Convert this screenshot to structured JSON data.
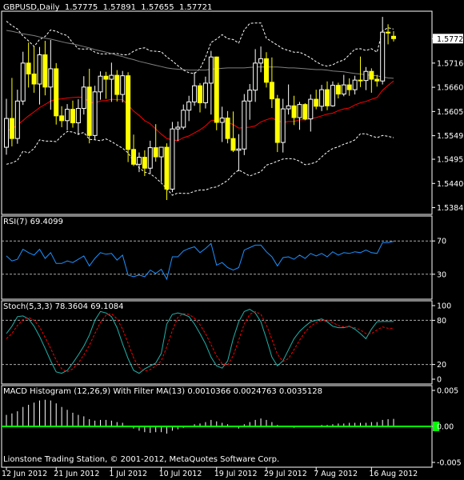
{
  "header": {
    "symbol": "GBPUSD,Daily",
    "ohlc": [
      "1.57775",
      "1.57891",
      "1.57655",
      "1.57721"
    ]
  },
  "colors": {
    "background": "#000000",
    "frame": "#ffffff",
    "bull": "#ffffff",
    "bear": "#ffff00",
    "band": "#ffffff",
    "slow_ma": "#808080",
    "fast_ma": "#ff0000",
    "rsi": "#1e90ff",
    "stoch_main": "#20b2aa",
    "stoch_signal": "#ff0000",
    "macd_hist": "#ffffff",
    "macd_signal": "#00ff00",
    "price_tag": "#ffffff"
  },
  "footer": "Lionstone Trading Station, © 2001-2012, MetaQuotes Software Corp.",
  "chart_data": [
    {
      "type": "candlestick",
      "title": "GBPUSD,Daily",
      "ylim": [
        1.5369,
        1.5835
      ],
      "y_ticks": [
        "1.57721",
        "1.57160",
        "1.56605",
        "1.56050",
        "1.55495",
        "1.54955",
        "1.54400",
        "1.53845"
      ],
      "current_price": "1.57721",
      "x_ticks": [
        "12 Jun 2012",
        "21 Jun 2012",
        "1 Jul 2012",
        "10 Jul 2012",
        "19 Jul 2012",
        "29 Jul 2012",
        "7 Aug 2012",
        "16 Aug 2012"
      ],
      "candles": [
        [
          1.5523,
          1.5634,
          1.5506,
          1.5589
        ],
        [
          1.5589,
          1.5682,
          1.5525,
          1.5543
        ],
        [
          1.5543,
          1.5655,
          1.5531,
          1.5629
        ],
        [
          1.5629,
          1.5742,
          1.562,
          1.5716
        ],
        [
          1.5716,
          1.5763,
          1.566,
          1.5691
        ],
        [
          1.5691,
          1.5754,
          1.5648,
          1.5668
        ],
        [
          1.5668,
          1.5753,
          1.5621,
          1.5735
        ],
        [
          1.5735,
          1.5767,
          1.5642,
          1.5661
        ],
        [
          1.5661,
          1.5769,
          1.5609,
          1.5703
        ],
        [
          1.5703,
          1.5716,
          1.5575,
          1.5595
        ],
        [
          1.5595,
          1.5617,
          1.5569,
          1.5584
        ],
        [
          1.5584,
          1.5622,
          1.5562,
          1.561
        ],
        [
          1.561,
          1.563,
          1.5568,
          1.5579
        ],
        [
          1.5579,
          1.5633,
          1.5551,
          1.5612
        ],
        [
          1.5612,
          1.5686,
          1.5598,
          1.5661
        ],
        [
          1.5661,
          1.5703,
          1.5532,
          1.555
        ],
        [
          1.555,
          1.5664,
          1.554,
          1.565
        ],
        [
          1.565,
          1.5697,
          1.5632,
          1.5686
        ],
        [
          1.5686,
          1.5696,
          1.5634,
          1.5679
        ],
        [
          1.5679,
          1.5717,
          1.5627,
          1.5688
        ],
        [
          1.5688,
          1.57,
          1.5628,
          1.5644
        ],
        [
          1.5644,
          1.5698,
          1.5626,
          1.5687
        ],
        [
          1.5687,
          1.5695,
          1.5489,
          1.5518
        ],
        [
          1.5518,
          1.5552,
          1.548,
          1.5484
        ],
        [
          1.5484,
          1.5511,
          1.5466,
          1.55
        ],
        [
          1.55,
          1.5516,
          1.5457,
          1.5475
        ],
        [
          1.5475,
          1.5538,
          1.5462,
          1.5522
        ],
        [
          1.5522,
          1.5576,
          1.549,
          1.5501
        ],
        [
          1.5501,
          1.5522,
          1.5443,
          1.5523
        ],
        [
          1.5523,
          1.5532,
          1.5402,
          1.5427
        ],
        [
          1.5427,
          1.5581,
          1.542,
          1.5565
        ],
        [
          1.5565,
          1.5582,
          1.5537,
          1.5569
        ],
        [
          1.5569,
          1.5621,
          1.5564,
          1.5608
        ],
        [
          1.5608,
          1.5641,
          1.5583,
          1.5627
        ],
        [
          1.5627,
          1.5695,
          1.5618,
          1.5664
        ],
        [
          1.5664,
          1.567,
          1.5603,
          1.5625
        ],
        [
          1.5625,
          1.5685,
          1.5612,
          1.567
        ],
        [
          1.567,
          1.5744,
          1.5598,
          1.573
        ],
        [
          1.573,
          1.5731,
          1.5562,
          1.558
        ],
        [
          1.558,
          1.5616,
          1.5535,
          1.559
        ],
        [
          1.559,
          1.5606,
          1.5532,
          1.5543
        ],
        [
          1.5543,
          1.5605,
          1.5512,
          1.5516
        ],
        [
          1.5516,
          1.5553,
          1.5468,
          1.5519
        ],
        [
          1.5519,
          1.5645,
          1.5505,
          1.5629
        ],
        [
          1.5629,
          1.5668,
          1.5586,
          1.5654
        ],
        [
          1.5654,
          1.5748,
          1.5627,
          1.5716
        ],
        [
          1.5716,
          1.5754,
          1.5695,
          1.5726
        ],
        [
          1.5726,
          1.5741,
          1.566,
          1.5672
        ],
        [
          1.5672,
          1.5729,
          1.5613,
          1.5634
        ],
        [
          1.5634,
          1.5643,
          1.5512,
          1.5534
        ],
        [
          1.5534,
          1.5634,
          1.5511,
          1.5611
        ],
        [
          1.5611,
          1.5667,
          1.5598,
          1.5618
        ],
        [
          1.5618,
          1.5641,
          1.5574,
          1.5591
        ],
        [
          1.5591,
          1.5627,
          1.5563,
          1.5621
        ],
        [
          1.5621,
          1.5624,
          1.5585,
          1.5588
        ],
        [
          1.5588,
          1.5644,
          1.5559,
          1.5633
        ],
        [
          1.5633,
          1.5655,
          1.561,
          1.5617
        ],
        [
          1.5617,
          1.5666,
          1.5606,
          1.5655
        ],
        [
          1.5655,
          1.5674,
          1.5608,
          1.5618
        ],
        [
          1.5618,
          1.5674,
          1.5616,
          1.5665
        ],
        [
          1.5665,
          1.5671,
          1.5635,
          1.5645
        ],
        [
          1.5645,
          1.5689,
          1.564,
          1.5666
        ],
        [
          1.5666,
          1.5681,
          1.5641,
          1.5655
        ],
        [
          1.5655,
          1.5687,
          1.5644,
          1.5677
        ],
        [
          1.5677,
          1.5731,
          1.5661,
          1.5676
        ],
        [
          1.5676,
          1.5707,
          1.5654,
          1.5697
        ],
        [
          1.5697,
          1.5704,
          1.5648,
          1.5679
        ],
        [
          1.5679,
          1.5689,
          1.5662,
          1.5675
        ],
        [
          1.5675,
          1.5822,
          1.5667,
          1.5787
        ],
        [
          1.5787,
          1.5805,
          1.5759,
          1.5785
        ],
        [
          1.57775,
          1.57891,
          1.57655,
          1.57721
        ]
      ],
      "bollinger_upper": [
        1.5812,
        1.5802,
        1.5794,
        1.5778,
        1.5767,
        1.5754,
        1.577,
        1.5777,
        1.5792,
        1.5789,
        1.5783,
        1.5779,
        1.5762,
        1.5749,
        1.5748,
        1.5749,
        1.5741,
        1.5737,
        1.5737,
        1.5738,
        1.5738,
        1.5735,
        1.5735,
        1.5743,
        1.5749,
        1.5751,
        1.5744,
        1.5743,
        1.5742,
        1.573,
        1.5721,
        1.571,
        1.57,
        1.5694,
        1.5692,
        1.5703,
        1.5729,
        1.5763,
        1.5771,
        1.5781,
        1.5772,
        1.577,
        1.5762,
        1.5792,
        1.5807,
        1.5808,
        1.5808,
        1.5773,
        1.5765,
        1.5757,
        1.5749,
        1.5745,
        1.5741,
        1.5741,
        1.5735,
        1.5728,
        1.5719,
        1.5712,
        1.5709,
        1.5712,
        1.5719,
        1.5723,
        1.5735,
        1.5748,
        1.5749,
        1.5745,
        1.5749,
        1.5741,
        1.579,
        1.5797,
        1.5794
      ],
      "bollinger_lower": [
        1.5484,
        1.5487,
        1.5493,
        1.5514,
        1.551,
        1.552,
        1.554,
        1.5537,
        1.5537,
        1.5536,
        1.5549,
        1.5559,
        1.5558,
        1.5553,
        1.5557,
        1.5541,
        1.554,
        1.5538,
        1.5542,
        1.5536,
        1.5528,
        1.5521,
        1.551,
        1.5491,
        1.5476,
        1.5466,
        1.5462,
        1.5453,
        1.5441,
        1.5428,
        1.5413,
        1.5418,
        1.5417,
        1.5417,
        1.5422,
        1.5425,
        1.5425,
        1.543,
        1.5432,
        1.5439,
        1.5447,
        1.5461,
        1.5471,
        1.5464,
        1.5457,
        1.5462,
        1.5467,
        1.5482,
        1.5486,
        1.5491,
        1.5496,
        1.5497,
        1.5496,
        1.5491,
        1.5483,
        1.5485,
        1.5489,
        1.5501,
        1.5512,
        1.552,
        1.5524,
        1.553,
        1.5534,
        1.554,
        1.5554,
        1.5554,
        1.5549,
        1.5545,
        1.555,
        1.5548,
        1.5545
      ],
      "ma_slow": [
        1.5791,
        1.5789,
        1.5786,
        1.5783,
        1.5781,
        1.5779,
        1.5776,
        1.5773,
        1.5771,
        1.5768,
        1.5765,
        1.5762,
        1.576,
        1.5757,
        1.5754,
        1.5751,
        1.5747,
        1.5744,
        1.5741,
        1.5738,
        1.5734,
        1.5731,
        1.5727,
        1.5724,
        1.572,
        1.5717,
        1.5714,
        1.5711,
        1.5708,
        1.5705,
        1.5703,
        1.5702,
        1.5701,
        1.57,
        1.57,
        1.57,
        1.57,
        1.5702,
        1.5703,
        1.5704,
        1.5705,
        1.5705,
        1.5705,
        1.5705,
        1.5706,
        1.5707,
        1.5707,
        1.5707,
        1.5707,
        1.5707,
        1.5706,
        1.5705,
        1.5705,
        1.5704,
        1.5703,
        1.5702,
        1.5701,
        1.5701,
        1.57,
        1.5698,
        1.5697,
        1.5696,
        1.5694,
        1.5692,
        1.5691,
        1.5689,
        1.5688,
        1.5687,
        1.5684,
        1.5682,
        1.5681
      ],
      "ma_fast": [
        1.5561,
        1.5565,
        1.5574,
        1.5584,
        1.5595,
        1.5604,
        1.5614,
        1.5621,
        1.5629,
        1.5633,
        1.5634,
        1.5636,
        1.5637,
        1.5638,
        1.5637,
        1.5626,
        1.5625,
        1.5629,
        1.563,
        1.5633,
        1.5632,
        1.5632,
        1.562,
        1.5606,
        1.5596,
        1.5584,
        1.5577,
        1.5565,
        1.5553,
        1.5543,
        1.554,
        1.5538,
        1.5545,
        1.5549,
        1.5556,
        1.5563,
        1.5572,
        1.5584,
        1.5585,
        1.5586,
        1.558,
        1.5575,
        1.5567,
        1.5568,
        1.5569,
        1.5572,
        1.5581,
        1.5586,
        1.559,
        1.5584,
        1.558,
        1.5582,
        1.5582,
        1.5586,
        1.5586,
        1.5589,
        1.5591,
        1.5595,
        1.5599,
        1.5601,
        1.5607,
        1.5611,
        1.5613,
        1.562,
        1.5625,
        1.5628,
        1.5633,
        1.5637,
        1.5654,
        1.5665,
        1.5675
      ]
    },
    {
      "type": "line",
      "title": "RSI(7) 69.4099",
      "ylim": [
        0,
        100
      ],
      "y_ticks": [
        "70",
        "30"
      ],
      "levels": [
        70,
        30
      ],
      "series": [
        {
          "name": "RSI(7)",
          "values": [
            52,
            46,
            48,
            60,
            56,
            53,
            60,
            49,
            56,
            43,
            43,
            46,
            44,
            48,
            52,
            40,
            49,
            56,
            54,
            55,
            47,
            53,
            29,
            27,
            29,
            27,
            35,
            31,
            36,
            24,
            51,
            51,
            58,
            61,
            63,
            56,
            61,
            67,
            41,
            44,
            38,
            35,
            38,
            59,
            62,
            65,
            65,
            57,
            51,
            40,
            50,
            51,
            48,
            53,
            49,
            55,
            52,
            55,
            51,
            57,
            53,
            56,
            55,
            57,
            56,
            59,
            56,
            55,
            68,
            68,
            69.4099
          ]
        }
      ]
    },
    {
      "type": "line",
      "title": "Stoch(5,3,3) 78.3604 69.1084",
      "ylim": [
        0,
        100
      ],
      "y_ticks": [
        "100",
        "80",
        "20",
        "0"
      ],
      "levels": [
        80,
        20
      ],
      "series": [
        {
          "name": "Stoch(5,3,3)",
          "values": [
            62,
            72,
            85,
            86,
            82,
            72,
            58,
            42,
            25,
            10,
            8,
            12,
            22,
            33,
            45,
            60,
            80,
            92,
            90,
            85,
            70,
            48,
            28,
            12,
            8,
            14,
            18,
            22,
            35,
            75,
            88,
            90,
            88,
            85,
            75,
            62,
            48,
            30,
            18,
            15,
            25,
            55,
            78,
            92,
            95,
            90,
            78,
            55,
            30,
            18,
            25,
            40,
            55,
            65,
            72,
            78,
            80,
            82,
            78,
            72,
            70,
            70,
            72,
            68,
            62,
            55,
            68,
            78,
            78.3604,
            78.3604,
            78.3604
          ]
        },
        {
          "name": "Stoch(5,3,3) signal",
          "values": [
            55,
            62,
            73,
            81,
            84,
            80,
            71,
            57,
            42,
            26,
            14,
            10,
            14,
            22,
            33,
            46,
            62,
            77,
            87,
            89,
            82,
            68,
            49,
            29,
            16,
            11,
            13,
            18,
            25,
            44,
            66,
            84,
            89,
            88,
            83,
            74,
            62,
            47,
            32,
            21,
            19,
            32,
            53,
            75,
            88,
            92,
            88,
            74,
            54,
            34,
            24,
            28,
            40,
            53,
            64,
            72,
            77,
            80,
            80,
            77,
            73,
            71,
            71,
            70,
            67,
            62,
            62,
            67,
            71,
            69.1084,
            69.1084
          ]
        }
      ]
    },
    {
      "type": "bar",
      "title": "MACD Histogram (12,26,9) With Filter MA(13) 0.0010366 0.0024763 0.0035128",
      "ylim": [
        -0.005,
        0.005
      ],
      "y_ticks": [
        "0.005",
        "0.00",
        "-0.005"
      ],
      "values": [
        0.0016,
        0.0018,
        0.0021,
        0.0027,
        0.003,
        0.0033,
        0.0036,
        0.0037,
        0.0036,
        0.0032,
        0.0027,
        0.0023,
        0.0019,
        0.0016,
        0.0014,
        0.001,
        0.0008,
        0.0009,
        0.0009,
        0.0008,
        0.0006,
        0.0005,
        0.0001,
        -0.0003,
        -0.0006,
        -0.0008,
        -0.0009,
        -0.0008,
        -0.0008,
        -0.001,
        -0.0006,
        -0.0004,
        -0.0002,
        0.0001,
        0.0003,
        0.0004,
        0.0006,
        0.0009,
        0.0007,
        0.0005,
        0.0003,
        -0.0001,
        -0.0003,
        0.0003,
        0.0006,
        0.0009,
        0.0011,
        0.0009,
        0.0006,
        0.0002,
        -0.0001,
        -0.0001,
        -0.0002,
        -0.0001,
        -0.0001,
        0.0,
        0.0001,
        0.0002,
        0.0002,
        0.0003,
        0.0004,
        0.0004,
        0.0005,
        0.0005,
        0.0005,
        0.0005,
        0.0006,
        0.0006,
        0.0009,
        0.001,
        0.0010366
      ],
      "signal_line": 0.0
    }
  ]
}
